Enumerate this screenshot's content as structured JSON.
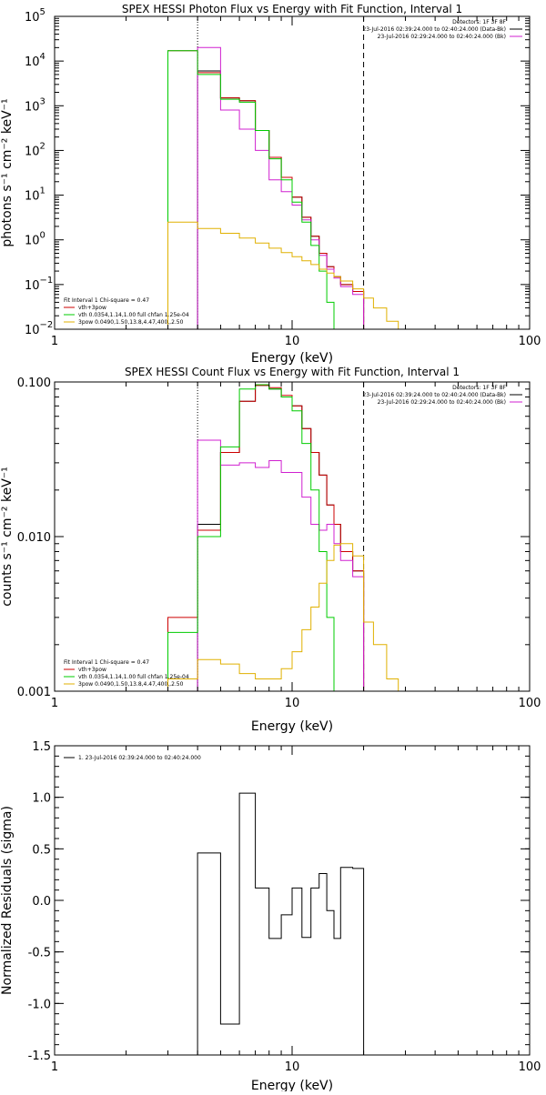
{
  "chart_data": [
    {
      "type": "line",
      "title": "SPEX HESSI Photon Flux vs Energy with Fit Function, Interval 1",
      "xlabel": "Energy (keV)",
      "ylabel": "photons s⁻¹ cm⁻² keV⁻¹",
      "xscale": "log",
      "yscale": "log",
      "xlim": [
        1,
        100
      ],
      "ylim": [
        0.01,
        100000
      ],
      "x_ticks": [
        {
          "v": 1,
          "label": "1"
        },
        {
          "v": 10,
          "label": "10"
        },
        {
          "v": 100,
          "label": "100"
        }
      ],
      "y_ticks": [
        {
          "v": 0.01,
          "base": "10",
          "exp": "−2"
        },
        {
          "v": 0.1,
          "base": "10",
          "exp": "−1"
        },
        {
          "v": 1,
          "base": "10",
          "exp": "0"
        },
        {
          "v": 10,
          "base": "10",
          "exp": "1"
        },
        {
          "v": 100,
          "base": "10",
          "exp": "2"
        },
        {
          "v": 1000,
          "base": "10",
          "exp": "3"
        },
        {
          "v": 10000,
          "base": "10",
          "exp": "4"
        },
        {
          "v": 100000,
          "base": "10",
          "exp": "5"
        }
      ],
      "vlines": [
        {
          "x": 4.0,
          "style": "dotted"
        },
        {
          "x": 20.0,
          "style": "dashed"
        }
      ],
      "legend_top": {
        "position": "top-right",
        "lines": [
          {
            "text": "Detectors: 1F 3F 8F",
            "color": ""
          },
          {
            "text": "23-Jul-2016 02:39:24.000 to 02:40:24.000 (Data-Bk)",
            "color": "#000000"
          },
          {
            "text": "23-Jul-2016 02:29:24.000 to 02:40:24.000 (Bk)",
            "color": "#d020d0"
          }
        ]
      },
      "legend_fit": {
        "position": "bottom-left",
        "header": "Fit Interval 1   Chi-square = 0.47",
        "lines": [
          {
            "text": "vth+3pow",
            "color": "#cc0000"
          },
          {
            "text": "vth 0.0354,1.14,1.00  full chfan 1.25e-04",
            "color": "#00cc00"
          },
          {
            "text": "3pow 0.0490,1.50,13.8,4.47,400.,2.50",
            "color": "#e0b000"
          }
        ]
      },
      "series": [
        {
          "color": "#000000",
          "edges": [
            4,
            5,
            6,
            7,
            8,
            9,
            10,
            11,
            12,
            13,
            14,
            15,
            16,
            18,
            20
          ],
          "values": [
            6000,
            1500,
            1300,
            280,
            70,
            25,
            9,
            3.2,
            1.2,
            0.5,
            0.25,
            0.15,
            0.1,
            0.07
          ]
        },
        {
          "color": "#cc0000",
          "edges": [
            3,
            4,
            5,
            6,
            7,
            8,
            9,
            10,
            11,
            12,
            13,
            14,
            15,
            16,
            18,
            20
          ],
          "values": [
            17000,
            5500,
            1500,
            1300,
            280,
            70,
            25,
            9,
            3.2,
            1.2,
            0.5,
            0.25,
            0.15,
            0.1,
            0.07
          ]
        },
        {
          "color": "#d020d0",
          "edges": [
            4,
            5,
            6,
            7,
            8,
            9,
            10,
            11,
            12,
            13,
            14,
            15,
            16,
            18,
            20
          ],
          "values": [
            20000,
            800,
            300,
            100,
            22,
            12,
            6,
            2.8,
            1.0,
            0.45,
            0.22,
            0.14,
            0.09,
            0.06
          ]
        },
        {
          "color": "#00cc00",
          "edges": [
            3,
            4,
            5,
            6,
            7,
            8,
            9,
            10,
            11,
            12,
            13,
            14,
            15,
            16
          ],
          "values": [
            17000,
            5000,
            1400,
            1200,
            280,
            65,
            22,
            7,
            2.5,
            0.75,
            0.2,
            0.04,
            0.01
          ]
        },
        {
          "color": "#e0b000",
          "edges": [
            3,
            4,
            5,
            6,
            7,
            8,
            9,
            10,
            11,
            12,
            13,
            14,
            15,
            16,
            18,
            20,
            22,
            25,
            28,
            32
          ],
          "values": [
            2.5,
            1.8,
            1.4,
            1.1,
            0.85,
            0.65,
            0.52,
            0.42,
            0.34,
            0.28,
            0.22,
            0.18,
            0.15,
            0.12,
            0.08,
            0.05,
            0.03,
            0.015,
            0.01
          ]
        }
      ]
    },
    {
      "type": "line",
      "title": "SPEX HESSI Count Flux vs Energy with Fit Function, Interval 1",
      "xlabel": "Energy (keV)",
      "ylabel": "counts s⁻¹ cm⁻² keV⁻¹",
      "xscale": "log",
      "yscale": "log",
      "xlim": [
        1,
        100
      ],
      "ylim": [
        0.001,
        0.1
      ],
      "x_ticks": [
        {
          "v": 1,
          "label": "1"
        },
        {
          "v": 10,
          "label": "10"
        },
        {
          "v": 100,
          "label": "100"
        }
      ],
      "y_ticks": [
        {
          "v": 0.001,
          "label": "0.001"
        },
        {
          "v": 0.01,
          "label": "0.010"
        },
        {
          "v": 0.1,
          "label": "0.100"
        }
      ],
      "vlines": [
        {
          "x": 4.0,
          "style": "dotted"
        },
        {
          "x": 20.0,
          "style": "dashed"
        }
      ],
      "legend_top": {
        "position": "top-right",
        "lines": [
          {
            "text": "Detectors: 1F 3F 8F",
            "color": ""
          },
          {
            "text": "23-Jul-2016 02:39:24.000 to 02:40:24.000 (Data-Bk)",
            "color": "#000000"
          },
          {
            "text": "23-Jul-2016 02:29:24.000 to 02:40:24.000 (Bk)",
            "color": "#d020d0"
          }
        ]
      },
      "legend_fit": {
        "position": "bottom-left",
        "header": "Fit Interval 1   Chi-square = 0.47",
        "lines": [
          {
            "text": "vth+3pow",
            "color": "#cc0000"
          },
          {
            "text": "vth 0.0354,1.14,1.00  full chfan 1.25e-04",
            "color": "#00cc00"
          },
          {
            "text": "3pow 0.0490,1.50,13.8,4.47,400.,2.50",
            "color": "#e0b000"
          }
        ]
      },
      "series": [
        {
          "color": "#000000",
          "edges": [
            4,
            5,
            6,
            7,
            8,
            9,
            10,
            11,
            12,
            13,
            14,
            15,
            16,
            18,
            20
          ],
          "values": [
            0.012,
            0.035,
            0.075,
            0.095,
            0.09,
            0.08,
            0.07,
            0.05,
            0.035,
            0.025,
            0.016,
            0.012,
            0.008,
            0.006
          ]
        },
        {
          "color": "#cc0000",
          "edges": [
            3,
            4,
            5,
            6,
            7,
            8,
            9,
            10,
            11,
            12,
            13,
            14,
            15,
            16,
            18,
            20
          ],
          "values": [
            0.003,
            0.011,
            0.035,
            0.075,
            0.095,
            0.092,
            0.082,
            0.07,
            0.05,
            0.035,
            0.025,
            0.016,
            0.012,
            0.008,
            0.006
          ]
        },
        {
          "color": "#d020d0",
          "edges": [
            4,
            5,
            6,
            7,
            8,
            9,
            10,
            11,
            12,
            13,
            14,
            15,
            16,
            18,
            20
          ],
          "values": [
            0.042,
            0.029,
            0.03,
            0.028,
            0.031,
            0.026,
            0.026,
            0.018,
            0.012,
            0.011,
            0.012,
            0.009,
            0.007,
            0.0055
          ]
        },
        {
          "color": "#00cc00",
          "edges": [
            3,
            4,
            5,
            6,
            7,
            8,
            9,
            10,
            11,
            12,
            13,
            14,
            15,
            16
          ],
          "values": [
            0.0024,
            0.01,
            0.038,
            0.09,
            0.096,
            0.09,
            0.08,
            0.065,
            0.04,
            0.02,
            0.008,
            0.003,
            0.001
          ]
        },
        {
          "color": "#e0b000",
          "edges": [
            3,
            4,
            5,
            6,
            7,
            8,
            9,
            10,
            11,
            12,
            13,
            14,
            15,
            16,
            18,
            20,
            22,
            25,
            28,
            32
          ],
          "values": [
            0.0012,
            0.0016,
            0.0015,
            0.0013,
            0.0012,
            0.0012,
            0.0014,
            0.0018,
            0.0025,
            0.0035,
            0.005,
            0.007,
            0.0088,
            0.009,
            0.0075,
            0.0028,
            0.002,
            0.0012,
            0.001
          ]
        }
      ]
    },
    {
      "type": "line",
      "title": "",
      "xlabel": "Energy (keV)",
      "ylabel": "Normalized Residuals (sigma)",
      "xscale": "log",
      "yscale": "linear",
      "xlim": [
        1,
        100
      ],
      "ylim": [
        -1.5,
        1.5
      ],
      "x_ticks": [
        {
          "v": 1,
          "label": "1"
        },
        {
          "v": 10,
          "label": "10"
        },
        {
          "v": 100,
          "label": "100"
        }
      ],
      "y_ticks": [
        {
          "v": -1.5,
          "label": "-1.5"
        },
        {
          "v": -1.0,
          "label": "-1.0"
        },
        {
          "v": -0.5,
          "label": "-0.5"
        },
        {
          "v": 0.0,
          "label": "0.0"
        },
        {
          "v": 0.5,
          "label": "0.5"
        },
        {
          "v": 1.0,
          "label": "1.0"
        },
        {
          "v": 1.5,
          "label": "1.5"
        }
      ],
      "vlines": [],
      "legend_top": {
        "position": "top-left",
        "lines": [
          {
            "text": "1. 23-Jul-2016 02:39:24.000 to 02:40:24.000",
            "color": "#000000"
          }
        ]
      },
      "legend_fit": null,
      "series": [
        {
          "color": "#000000",
          "edges": [
            4,
            5,
            6,
            7,
            8,
            9,
            10,
            11,
            12,
            13,
            14,
            15,
            16,
            18,
            20
          ],
          "values": [
            0.46,
            -1.2,
            1.04,
            0.12,
            -0.37,
            -0.14,
            0.12,
            -0.36,
            0.12,
            0.26,
            -0.1,
            -0.37,
            0.32,
            0.31
          ]
        }
      ]
    }
  ]
}
